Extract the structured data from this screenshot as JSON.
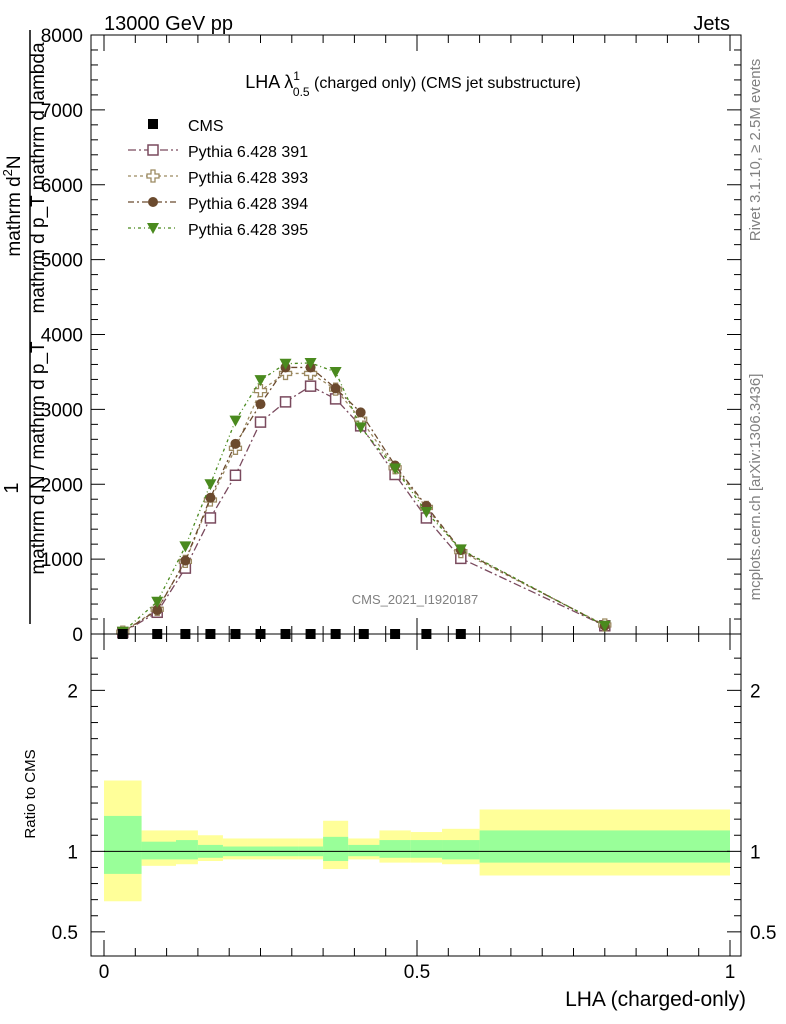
{
  "header": {
    "energy_label": "13000 GeV pp",
    "category_label": "Jets"
  },
  "side": {
    "rivet_label": "Rivet 3.1.10, ≥ 2.5M events",
    "source_label": "mcplots.cern.ch [arXiv:1306.3436]"
  },
  "chart_data": [
    {
      "type": "line",
      "title_main": "LHA λ",
      "title_sup": "1",
      "title_sub": "0.5",
      "title_rest": " (charged only) (CMS jet substructure)",
      "watermark": "CMS_2021_I1920187",
      "xlabel": "",
      "ylabel_top": "mathrm d",
      "ylabel_top_sup": "2",
      "ylabel_top_rest": "N",
      "ylabel_top_line2": "mathrm d p_T mathrm d lambda",
      "ylabel_one": "1",
      "ylabel_bottom": "mathrm d N / mathrm d p_T",
      "xlim": [
        0,
        1
      ],
      "ylim": [
        0,
        8000
      ],
      "yticks": [
        0,
        1000,
        2000,
        3000,
        4000,
        5000,
        6000,
        7000,
        8000
      ],
      "ytick_labels": [
        "0",
        "1000",
        "2000",
        "3000",
        "4000",
        "5000",
        "6000",
        "7000",
        "8000"
      ],
      "x": [
        0.03,
        0.085,
        0.13,
        0.17,
        0.21,
        0.25,
        0.29,
        0.33,
        0.37,
        0.41,
        0.465,
        0.515,
        0.57,
        0.8
      ],
      "cms": [
        0,
        0,
        0,
        0,
        0,
        0,
        0,
        0,
        0,
        0,
        0,
        0,
        0
      ],
      "cms_x": [
        0.03,
        0.085,
        0.13,
        0.17,
        0.21,
        0.25,
        0.29,
        0.33,
        0.37,
        0.415,
        0.465,
        0.515,
        0.57
      ],
      "series": [
        {
          "name": "Pythia 6.428 391",
          "color": "#7a4a5e",
          "marker": "open-square",
          "dash": "8,3,2,3",
          "values": [
            20,
            290,
            880,
            1550,
            2120,
            2830,
            3100,
            3310,
            3140,
            2780,
            2130,
            1550,
            1010,
            110
          ]
        },
        {
          "name": "Pythia 6.428 393",
          "color": "#9c8a62",
          "marker": "open-cross",
          "dash": "3,3",
          "values": [
            25,
            330,
            970,
            1790,
            2480,
            3250,
            3480,
            3480,
            3270,
            2870,
            2220,
            1690,
            1100,
            120
          ]
        },
        {
          "name": "Pythia 6.428 394",
          "color": "#6b4a2e",
          "marker": "filled-circle",
          "dash": "6,3,2,3",
          "values": [
            25,
            320,
            980,
            1820,
            2540,
            3070,
            3560,
            3560,
            3280,
            2960,
            2250,
            1710,
            1120,
            110
          ]
        },
        {
          "name": "Pythia 6.428 395",
          "color": "#4a8a1e",
          "marker": "filled-triangle",
          "dash": "3,3,1,3",
          "values": [
            30,
            430,
            1170,
            2000,
            2850,
            3390,
            3610,
            3620,
            3500,
            2760,
            2210,
            1630,
            1130,
            110
          ]
        }
      ]
    },
    {
      "type": "area",
      "ylabel": "Ratio to CMS",
      "xlabel": "LHA (charged-only)",
      "xlim": [
        0,
        1
      ],
      "ylim": [
        0.35,
        2.35
      ],
      "xticks": [
        0,
        0.5,
        1
      ],
      "xtick_labels": [
        "0",
        "0.5",
        "1"
      ],
      "yticks": [
        0.5,
        1,
        2
      ],
      "ytick_labels": [
        "0.5",
        "1",
        "2"
      ],
      "reference": 1,
      "bins": [
        {
          "lo": 0.0,
          "hi": 0.06,
          "stat": [
            0.86,
            1.22
          ],
          "tot": [
            0.69,
            1.44
          ]
        },
        {
          "lo": 0.06,
          "hi": 0.115,
          "stat": [
            0.95,
            1.06
          ],
          "tot": [
            0.91,
            1.13
          ]
        },
        {
          "lo": 0.115,
          "hi": 0.15,
          "stat": [
            0.95,
            1.07
          ],
          "tot": [
            0.92,
            1.13
          ]
        },
        {
          "lo": 0.15,
          "hi": 0.19,
          "stat": [
            0.96,
            1.04
          ],
          "tot": [
            0.94,
            1.1
          ]
        },
        {
          "lo": 0.19,
          "hi": 0.23,
          "stat": [
            0.97,
            1.03
          ],
          "tot": [
            0.95,
            1.08
          ]
        },
        {
          "lo": 0.23,
          "hi": 0.27,
          "stat": [
            0.97,
            1.03
          ],
          "tot": [
            0.95,
            1.08
          ]
        },
        {
          "lo": 0.27,
          "hi": 0.31,
          "stat": [
            0.97,
            1.03
          ],
          "tot": [
            0.95,
            1.08
          ]
        },
        {
          "lo": 0.31,
          "hi": 0.35,
          "stat": [
            0.97,
            1.03
          ],
          "tot": [
            0.95,
            1.08
          ]
        },
        {
          "lo": 0.35,
          "hi": 0.39,
          "stat": [
            0.94,
            1.09
          ],
          "tot": [
            0.89,
            1.19
          ]
        },
        {
          "lo": 0.39,
          "hi": 0.44,
          "stat": [
            0.97,
            1.04
          ],
          "tot": [
            0.95,
            1.08
          ]
        },
        {
          "lo": 0.44,
          "hi": 0.49,
          "stat": [
            0.96,
            1.07
          ],
          "tot": [
            0.93,
            1.13
          ]
        },
        {
          "lo": 0.49,
          "hi": 0.54,
          "stat": [
            0.96,
            1.07
          ],
          "tot": [
            0.93,
            1.12
          ]
        },
        {
          "lo": 0.54,
          "hi": 0.6,
          "stat": [
            0.95,
            1.07
          ],
          "tot": [
            0.92,
            1.14
          ]
        },
        {
          "lo": 0.6,
          "hi": 1.0,
          "stat": [
            0.93,
            1.13
          ],
          "tot": [
            0.85,
            1.26
          ]
        }
      ],
      "colors": {
        "stat": "#99ff99",
        "tot": "#ffff99"
      }
    }
  ]
}
